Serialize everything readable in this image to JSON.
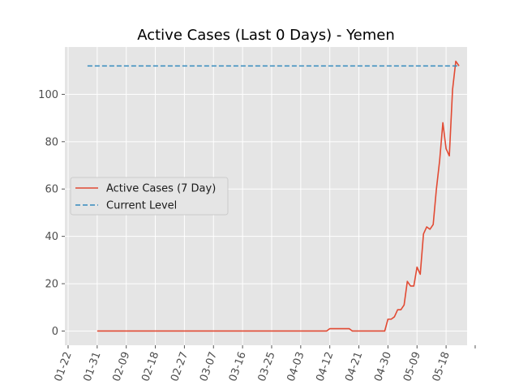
{
  "chart_data": {
    "type": "line",
    "title": "Active Cases (Last 0 Days) - Yemen",
    "xlabel": "",
    "ylabel": "",
    "x_ticks": [
      "01-22",
      "01-31",
      "02-09",
      "02-18",
      "02-27",
      "03-07",
      "03-16",
      "03-25",
      "04-03",
      "04-12",
      "04-21",
      "04-30",
      "05-09",
      "05-18"
    ],
    "y_ticks": [
      0,
      20,
      40,
      60,
      80,
      100
    ],
    "ylim": [
      -6,
      120
    ],
    "grid": true,
    "legend_position": "center-left",
    "series": [
      {
        "name": "Active Cases (7 Day)",
        "color": "#E24A33",
        "style": "solid",
        "points": [
          [
            "01-31",
            0
          ],
          [
            "02-09",
            0
          ],
          [
            "02-18",
            0
          ],
          [
            "02-27",
            0
          ],
          [
            "03-07",
            0
          ],
          [
            "03-16",
            0
          ],
          [
            "03-25",
            0
          ],
          [
            "04-03",
            0
          ],
          [
            "04-11",
            0
          ],
          [
            "04-12",
            1
          ],
          [
            "04-18",
            1
          ],
          [
            "04-19",
            0
          ],
          [
            "04-29",
            0
          ],
          [
            "04-30",
            5
          ],
          [
            "05-01",
            5
          ],
          [
            "05-02",
            6
          ],
          [
            "05-03",
            9
          ],
          [
            "05-04",
            9
          ],
          [
            "05-05",
            11
          ],
          [
            "05-06",
            21
          ],
          [
            "05-07",
            19
          ],
          [
            "05-08",
            19
          ],
          [
            "05-09",
            27
          ],
          [
            "05-10",
            24
          ],
          [
            "05-11",
            41
          ],
          [
            "05-12",
            44
          ],
          [
            "05-13",
            43
          ],
          [
            "05-14",
            45
          ],
          [
            "05-15",
            60
          ],
          [
            "05-16",
            72
          ],
          [
            "05-17",
            88
          ],
          [
            "05-18",
            77
          ],
          [
            "05-19",
            74
          ],
          [
            "05-20",
            102
          ],
          [
            "05-21",
            114
          ],
          [
            "05-22",
            112
          ]
        ]
      },
      {
        "name": "Current Level",
        "color": "#348ABD",
        "style": "dashed",
        "points": [
          [
            "01-28",
            112
          ],
          [
            "05-22",
            112
          ]
        ]
      }
    ]
  }
}
